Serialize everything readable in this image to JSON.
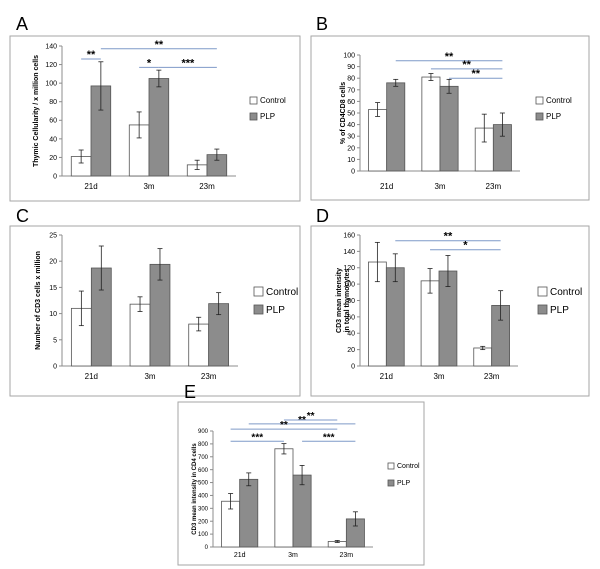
{
  "chart_data": [
    {
      "panel": "A",
      "type": "bar",
      "categories": [
        "21d",
        "3m",
        "23m"
      ],
      "series": [
        {
          "name": "Control",
          "values": [
            21,
            55,
            12
          ],
          "errors": [
            7,
            14,
            5
          ]
        },
        {
          "name": "PLP",
          "values": [
            97,
            105,
            23
          ],
          "errors": [
            26,
            9,
            6
          ]
        }
      ],
      "ylabel": "Thymic Cellularity / x million cells",
      "ylim": [
        0,
        140
      ],
      "yticks": [
        0,
        20,
        40,
        60,
        80,
        100,
        120,
        140
      ],
      "significance": [
        {
          "label": "**",
          "from": "21d:Control",
          "to": "21d:PLP",
          "level": 126
        },
        {
          "label": "**",
          "from": "21d:PLP",
          "to": "23m:PLP",
          "level": 137
        },
        {
          "label": "*",
          "from": "3m:Control",
          "to": "3m:PLP",
          "level": 117
        },
        {
          "label": "***",
          "from": "3m:PLP",
          "to": "23m:PLP",
          "level": 117
        }
      ]
    },
    {
      "panel": "B",
      "type": "bar",
      "categories": [
        "21d",
        "3m",
        "23m"
      ],
      "series": [
        {
          "name": "Control",
          "values": [
            53,
            81,
            37
          ],
          "errors": [
            6,
            3,
            12
          ]
        },
        {
          "name": "PLP",
          "values": [
            76,
            73,
            40
          ],
          "errors": [
            3,
            6,
            10
          ]
        }
      ],
      "ylabel": "% of CD4CD8 cells",
      "ylim": [
        0,
        100
      ],
      "yticks": [
        0,
        10,
        20,
        30,
        40,
        50,
        60,
        70,
        80,
        90,
        100
      ],
      "significance": [
        {
          "label": "**",
          "from": "21d:PLP",
          "to": "23m:PLP",
          "level": 95
        },
        {
          "label": "**",
          "from": "3m:Control",
          "to": "23m:PLP",
          "level": 88
        },
        {
          "label": "**",
          "from": "3m:PLP",
          "to": "23m:PLP",
          "level": 80
        }
      ]
    },
    {
      "panel": "C",
      "type": "bar",
      "categories": [
        "21d",
        "3m",
        "23m"
      ],
      "series": [
        {
          "name": "Control",
          "values": [
            11,
            11.8,
            8
          ],
          "errors": [
            3.3,
            1.4,
            1.3
          ]
        },
        {
          "name": "PLP",
          "values": [
            18.7,
            19.4,
            11.9
          ],
          "errors": [
            4.2,
            3.0,
            2.1
          ]
        }
      ],
      "ylabel": "Number of CD3 cells x million",
      "ylim": [
        0,
        25
      ],
      "yticks": [
        0,
        5,
        10,
        15,
        20,
        25
      ],
      "significance": []
    },
    {
      "panel": "D",
      "type": "bar",
      "categories": [
        "21d",
        "3m",
        "23m"
      ],
      "series": [
        {
          "name": "Control",
          "values": [
            127,
            104,
            22
          ],
          "errors": [
            24,
            15,
            2
          ]
        },
        {
          "name": "PLP",
          "values": [
            120,
            116,
            74
          ],
          "errors": [
            17,
            19,
            18
          ]
        }
      ],
      "ylabel": "CD3 mean intensity in total thymocytes",
      "ylim": [
        0,
        160
      ],
      "yticks": [
        0,
        20,
        40,
        60,
        80,
        100,
        120,
        140,
        160
      ],
      "significance": [
        {
          "label": "**",
          "from": "21d:PLP",
          "to": "23m:PLP",
          "level": 153
        },
        {
          "label": "*",
          "from": "3m:Control",
          "to": "23m:PLP",
          "level": 142
        }
      ]
    },
    {
      "panel": "E",
      "type": "bar",
      "categories": [
        "21d",
        "3m",
        "23m"
      ],
      "series": [
        {
          "name": "Control",
          "values": [
            355,
            762,
            43
          ],
          "errors": [
            60,
            40,
            8
          ]
        },
        {
          "name": "PLP",
          "values": [
            525,
            558,
            218
          ],
          "errors": [
            50,
            75,
            55
          ]
        }
      ],
      "ylabel": "CD3 mean intensity in CD4 cells",
      "ylim": [
        0,
        900
      ],
      "yticks": [
        0,
        100,
        200,
        300,
        400,
        500,
        600,
        700,
        800,
        900
      ],
      "significance": [
        {
          "label": "**",
          "from": "3m:Control",
          "to": "23m:Control",
          "level": 985
        },
        {
          "label": "**",
          "from": "21d:PLP",
          "to": "23m:PLP",
          "level": 955
        },
        {
          "label": "**",
          "from": "21d:Control",
          "to": "23m:Control",
          "level": 915
        },
        {
          "label": "***",
          "from": "21d:Control",
          "to": "3m:Control",
          "level": 820
        },
        {
          "label": "***",
          "from": "3m:PLP",
          "to": "23m:PLP",
          "level": 820
        }
      ]
    }
  ],
  "colors": {
    "control_fill": "#ffffff",
    "plp_fill": "#8c8c8c",
    "bar_stroke": "#555555",
    "significance_line": "#7f9ac8",
    "frame": "#a6a6a6",
    "axis": "#8c8c8c"
  }
}
